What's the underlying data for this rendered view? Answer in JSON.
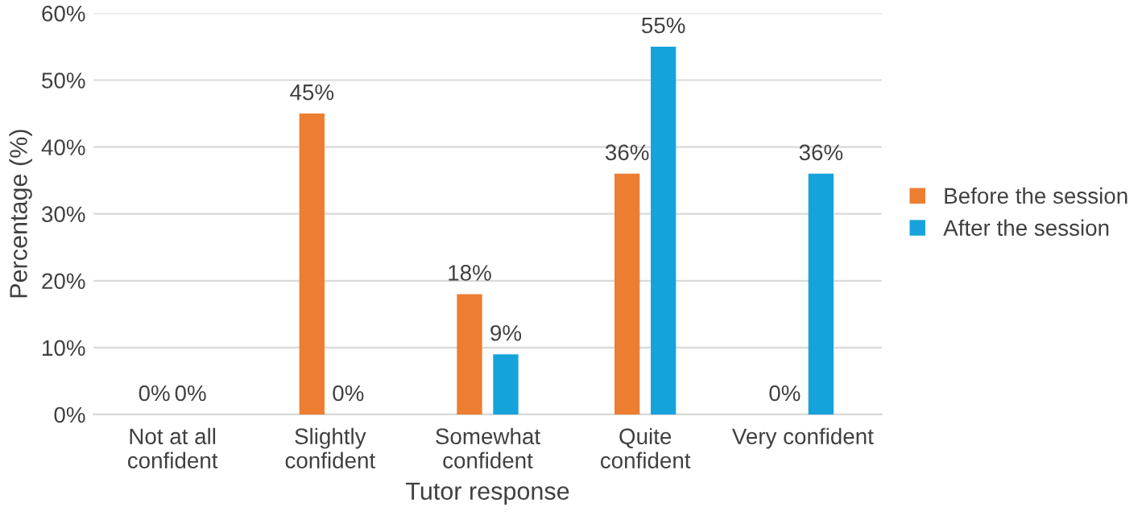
{
  "chart_data": {
    "type": "bar",
    "xlabel": "Tutor response",
    "ylabel": "Percentage (%)",
    "categories": [
      "Not at all\nconfident",
      "Slightly\nconfident",
      "Somewhat\nconfident",
      "Quite\nconfident",
      "Very confident"
    ],
    "series": [
      {
        "name": "Before the session",
        "color": "#ed7d31",
        "values": [
          0,
          45,
          18,
          36,
          0
        ],
        "value_labels": [
          "0%",
          "45%",
          "18%",
          "36%",
          "0%"
        ]
      },
      {
        "name": "After the session",
        "color": "#16a3dc",
        "values": [
          0,
          0,
          9,
          55,
          36
        ],
        "value_labels": [
          "0%",
          "0%",
          "9%",
          "55%",
          "36%"
        ]
      }
    ],
    "ylim": [
      0,
      60
    ],
    "yticks": [
      {
        "value": 0,
        "label": "0%"
      },
      {
        "value": 10,
        "label": "10%"
      },
      {
        "value": 20,
        "label": "20%"
      },
      {
        "value": 30,
        "label": "30%"
      },
      {
        "value": 40,
        "label": "40%"
      },
      {
        "value": 50,
        "label": "50%"
      },
      {
        "value": 60,
        "label": "60%"
      }
    ],
    "grid": "y",
    "legend": "right"
  }
}
